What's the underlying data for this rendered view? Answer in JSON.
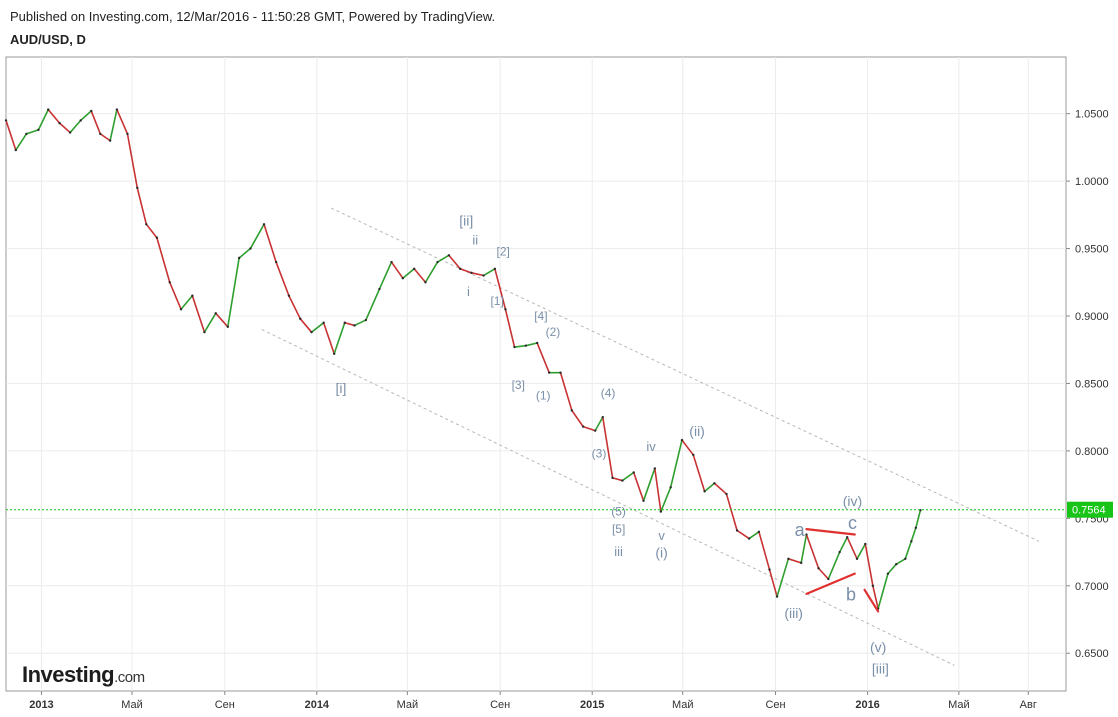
{
  "header": {
    "published": "Published on Investing.com, 12/Mar/2016 - 11:50:28 GMT, Powered by TradingView.",
    "symbol": "AUD/USD, D"
  },
  "brand": {
    "name": "Investing",
    "suffix": ".com"
  },
  "colors": {
    "up": "#2e9e2e",
    "down": "#c83232",
    "price_line": "#17c417",
    "channel": "#b8b8b8",
    "wave_label": "#7a8fa8",
    "triangle": "#e03030",
    "grid": "#ececec",
    "price_label_bg": "#17c417"
  },
  "chart_data": {
    "type": "line",
    "title": "AUD/USD, D",
    "xlabel": "",
    "ylabel": "",
    "grid": true,
    "y_scale": "linear",
    "ylim": [
      0.622,
      1.092
    ],
    "xlim": [
      "2012-11-15",
      "2016-09-20"
    ],
    "x_ticks": [
      {
        "date": "2013-01-01",
        "label": "2013",
        "bold": true
      },
      {
        "date": "2013-05-01",
        "label": "Май",
        "bold": false
      },
      {
        "date": "2013-09-01",
        "label": "Сен",
        "bold": false
      },
      {
        "date": "2014-01-01",
        "label": "2014",
        "bold": true
      },
      {
        "date": "2014-05-01",
        "label": "Май",
        "bold": false
      },
      {
        "date": "2014-09-01",
        "label": "Сен",
        "bold": false
      },
      {
        "date": "2015-01-01",
        "label": "2015",
        "bold": true
      },
      {
        "date": "2015-05-01",
        "label": "Май",
        "bold": false
      },
      {
        "date": "2015-09-01",
        "label": "Сен",
        "bold": false
      },
      {
        "date": "2016-01-01",
        "label": "2016",
        "bold": true
      },
      {
        "date": "2016-05-01",
        "label": "Май",
        "bold": false
      },
      {
        "date": "2016-08-01",
        "label": "Авг",
        "bold": false
      }
    ],
    "y_ticks": [
      1.05,
      1.0,
      0.95,
      0.9,
      0.85,
      0.8,
      0.75,
      0.7,
      0.65
    ],
    "y_tick_labels": [
      "1.0500",
      "1.0000",
      "0.9500",
      "0.9000",
      "0.8500",
      "0.8000",
      "0.7500",
      "0.7000",
      "0.6500"
    ],
    "last_price": 0.7564,
    "last_price_label": "0.7564",
    "series": [
      {
        "values": [
          [
            "2012-11-15",
            1.045
          ],
          [
            "2012-11-28",
            1.023
          ],
          [
            "2012-12-12",
            1.035
          ],
          [
            "2012-12-28",
            1.038
          ],
          [
            "2013-01-10",
            1.053
          ],
          [
            "2013-01-25",
            1.043
          ],
          [
            "2013-02-08",
            1.036
          ],
          [
            "2013-02-22",
            1.045
          ],
          [
            "2013-03-08",
            1.052
          ],
          [
            "2013-03-20",
            1.035
          ],
          [
            "2013-04-02",
            1.03
          ],
          [
            "2013-04-11",
            1.053
          ],
          [
            "2013-04-25",
            1.035
          ],
          [
            "2013-05-08",
            0.995
          ],
          [
            "2013-05-20",
            0.968
          ],
          [
            "2013-06-03",
            0.958
          ],
          [
            "2013-06-20",
            0.925
          ],
          [
            "2013-07-05",
            0.905
          ],
          [
            "2013-07-20",
            0.915
          ],
          [
            "2013-08-05",
            0.888
          ],
          [
            "2013-08-20",
            0.902
          ],
          [
            "2013-09-05",
            0.892
          ],
          [
            "2013-09-20",
            0.943
          ],
          [
            "2013-10-05",
            0.95
          ],
          [
            "2013-10-23",
            0.968
          ],
          [
            "2013-11-08",
            0.94
          ],
          [
            "2013-11-25",
            0.915
          ],
          [
            "2013-12-10",
            0.898
          ],
          [
            "2013-12-25",
            0.888
          ],
          [
            "2014-01-10",
            0.895
          ],
          [
            "2014-01-24",
            0.872
          ],
          [
            "2014-02-07",
            0.895
          ],
          [
            "2014-02-20",
            0.893
          ],
          [
            "2014-03-07",
            0.897
          ],
          [
            "2014-03-25",
            0.92
          ],
          [
            "2014-04-10",
            0.94
          ],
          [
            "2014-04-25",
            0.928
          ],
          [
            "2014-05-10",
            0.935
          ],
          [
            "2014-05-25",
            0.925
          ],
          [
            "2014-06-10",
            0.94
          ],
          [
            "2014-06-25",
            0.945
          ],
          [
            "2014-07-10",
            0.935
          ],
          [
            "2014-07-25",
            0.932
          ],
          [
            "2014-08-10",
            0.93
          ],
          [
            "2014-08-25",
            0.935
          ],
          [
            "2014-09-08",
            0.905
          ],
          [
            "2014-09-20",
            0.877
          ],
          [
            "2014-10-05",
            0.878
          ],
          [
            "2014-10-20",
            0.88
          ],
          [
            "2014-11-05",
            0.858
          ],
          [
            "2014-11-20",
            0.858
          ],
          [
            "2014-12-05",
            0.83
          ],
          [
            "2014-12-20",
            0.818
          ],
          [
            "2015-01-05",
            0.815
          ],
          [
            "2015-01-15",
            0.825
          ],
          [
            "2015-01-28",
            0.78
          ],
          [
            "2015-02-10",
            0.778
          ],
          [
            "2015-02-25",
            0.784
          ],
          [
            "2015-03-10",
            0.763
          ],
          [
            "2015-03-25",
            0.787
          ],
          [
            "2015-04-02",
            0.755
          ],
          [
            "2015-04-15",
            0.773
          ],
          [
            "2015-04-30",
            0.808
          ],
          [
            "2015-05-15",
            0.797
          ],
          [
            "2015-05-30",
            0.77
          ],
          [
            "2015-06-12",
            0.776
          ],
          [
            "2015-06-28",
            0.768
          ],
          [
            "2015-07-12",
            0.741
          ],
          [
            "2015-07-28",
            0.735
          ],
          [
            "2015-08-10",
            0.74
          ],
          [
            "2015-08-24",
            0.712
          ],
          [
            "2015-09-03",
            0.692
          ],
          [
            "2015-09-18",
            0.72
          ],
          [
            "2015-10-05",
            0.717
          ],
          [
            "2015-10-12",
            0.738
          ],
          [
            "2015-10-28",
            0.713
          ],
          [
            "2015-11-10",
            0.705
          ],
          [
            "2015-11-25",
            0.725
          ],
          [
            "2015-12-05",
            0.736
          ],
          [
            "2015-12-18",
            0.72
          ],
          [
            "2015-12-29",
            0.731
          ],
          [
            "2016-01-08",
            0.7
          ],
          [
            "2016-01-15",
            0.683
          ],
          [
            "2016-01-28",
            0.709
          ],
          [
            "2016-02-08",
            0.716
          ],
          [
            "2016-02-20",
            0.72
          ],
          [
            "2016-02-28",
            0.733
          ],
          [
            "2016-03-05",
            0.743
          ],
          [
            "2016-03-11",
            0.756
          ]
        ]
      }
    ],
    "channel_lines": [
      [
        [
          "2014-01-20",
          0.98
        ],
        [
          "2016-08-15",
          0.733
        ]
      ],
      [
        [
          "2013-10-20",
          0.89
        ],
        [
          "2016-04-25",
          0.641
        ]
      ]
    ],
    "triangle_lines": [
      [
        [
          "2015-10-12",
          0.742
        ],
        [
          "2015-12-15",
          0.738
        ]
      ],
      [
        [
          "2015-10-12",
          0.694
        ],
        [
          "2015-12-15",
          0.709
        ]
      ],
      [
        [
          "2015-12-28",
          0.697
        ],
        [
          "2016-01-15",
          0.681
        ]
      ]
    ],
    "wave_labels": [
      {
        "text": "[ii]",
        "x": "2014-07-18",
        "y": 0.967,
        "size": 14
      },
      {
        "text": "ii",
        "x": "2014-07-30",
        "y": 0.953,
        "size": 13
      },
      {
        "text": "[2]",
        "x": "2014-09-05",
        "y": 0.945,
        "size": 12
      },
      {
        "text": "i",
        "x": "2014-07-21",
        "y": 0.915,
        "size": 13
      },
      {
        "text": "[1]",
        "x": "2014-08-28",
        "y": 0.908,
        "size": 12
      },
      {
        "text": "[4]",
        "x": "2014-10-25",
        "y": 0.897,
        "size": 12
      },
      {
        "text": "(2)",
        "x": "2014-11-10",
        "y": 0.885,
        "size": 12
      },
      {
        "text": "[i]",
        "x": "2014-02-02",
        "y": 0.843,
        "size": 14
      },
      {
        "text": "[3]",
        "x": "2014-09-25",
        "y": 0.846,
        "size": 12
      },
      {
        "text": "(1)",
        "x": "2014-10-28",
        "y": 0.838,
        "size": 12
      },
      {
        "text": "(4)",
        "x": "2015-01-22",
        "y": 0.84,
        "size": 12
      },
      {
        "text": "(ii)",
        "x": "2015-05-20",
        "y": 0.811,
        "size": 14
      },
      {
        "text": "(3)",
        "x": "2015-01-10",
        "y": 0.795,
        "size": 12
      },
      {
        "text": "iv",
        "x": "2015-03-20",
        "y": 0.8,
        "size": 13
      },
      {
        "text": "(5)",
        "x": "2015-02-05",
        "y": 0.752,
        "size": 12
      },
      {
        "text": "[5]",
        "x": "2015-02-05",
        "y": 0.739,
        "size": 12
      },
      {
        "text": "v",
        "x": "2015-04-03",
        "y": 0.734,
        "size": 13
      },
      {
        "text": "iii",
        "x": "2015-02-05",
        "y": 0.722,
        "size": 13
      },
      {
        "text": "(i)",
        "x": "2015-04-03",
        "y": 0.721,
        "size": 14
      },
      {
        "text": "(iv)",
        "x": "2015-12-12",
        "y": 0.759,
        "size": 14
      },
      {
        "text": "a",
        "x": "2015-10-03",
        "y": 0.737,
        "size": 18
      },
      {
        "text": "c",
        "x": "2015-12-12",
        "y": 0.742,
        "size": 18
      },
      {
        "text": "b",
        "x": "2015-12-10",
        "y": 0.689,
        "size": 18
      },
      {
        "text": "(iii)",
        "x": "2015-09-25",
        "y": 0.676,
        "size": 14
      },
      {
        "text": "(v)",
        "x": "2016-01-15",
        "y": 0.651,
        "size": 14
      },
      {
        "text": "[iii]",
        "x": "2016-01-18",
        "y": 0.635,
        "size": 14
      }
    ]
  }
}
